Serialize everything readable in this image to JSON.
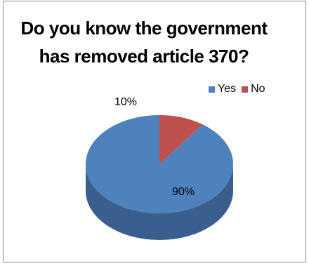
{
  "chart_data": {
    "type": "pie",
    "title_lines": [
      "Do you know the government",
      "has removed article 370?"
    ],
    "categories": [
      "Yes",
      "No"
    ],
    "values": [
      90,
      10
    ],
    "data_labels": [
      "90%",
      "10%"
    ],
    "legend": {
      "placement": "top-right",
      "entries": [
        "Yes",
        "No"
      ]
    },
    "colors": {
      "Yes": "#4f81bd",
      "No": "#c0504d"
    },
    "side_colors": {
      "Yes": "#3a5f8f",
      "No": "#943c39"
    },
    "style": "3d"
  }
}
